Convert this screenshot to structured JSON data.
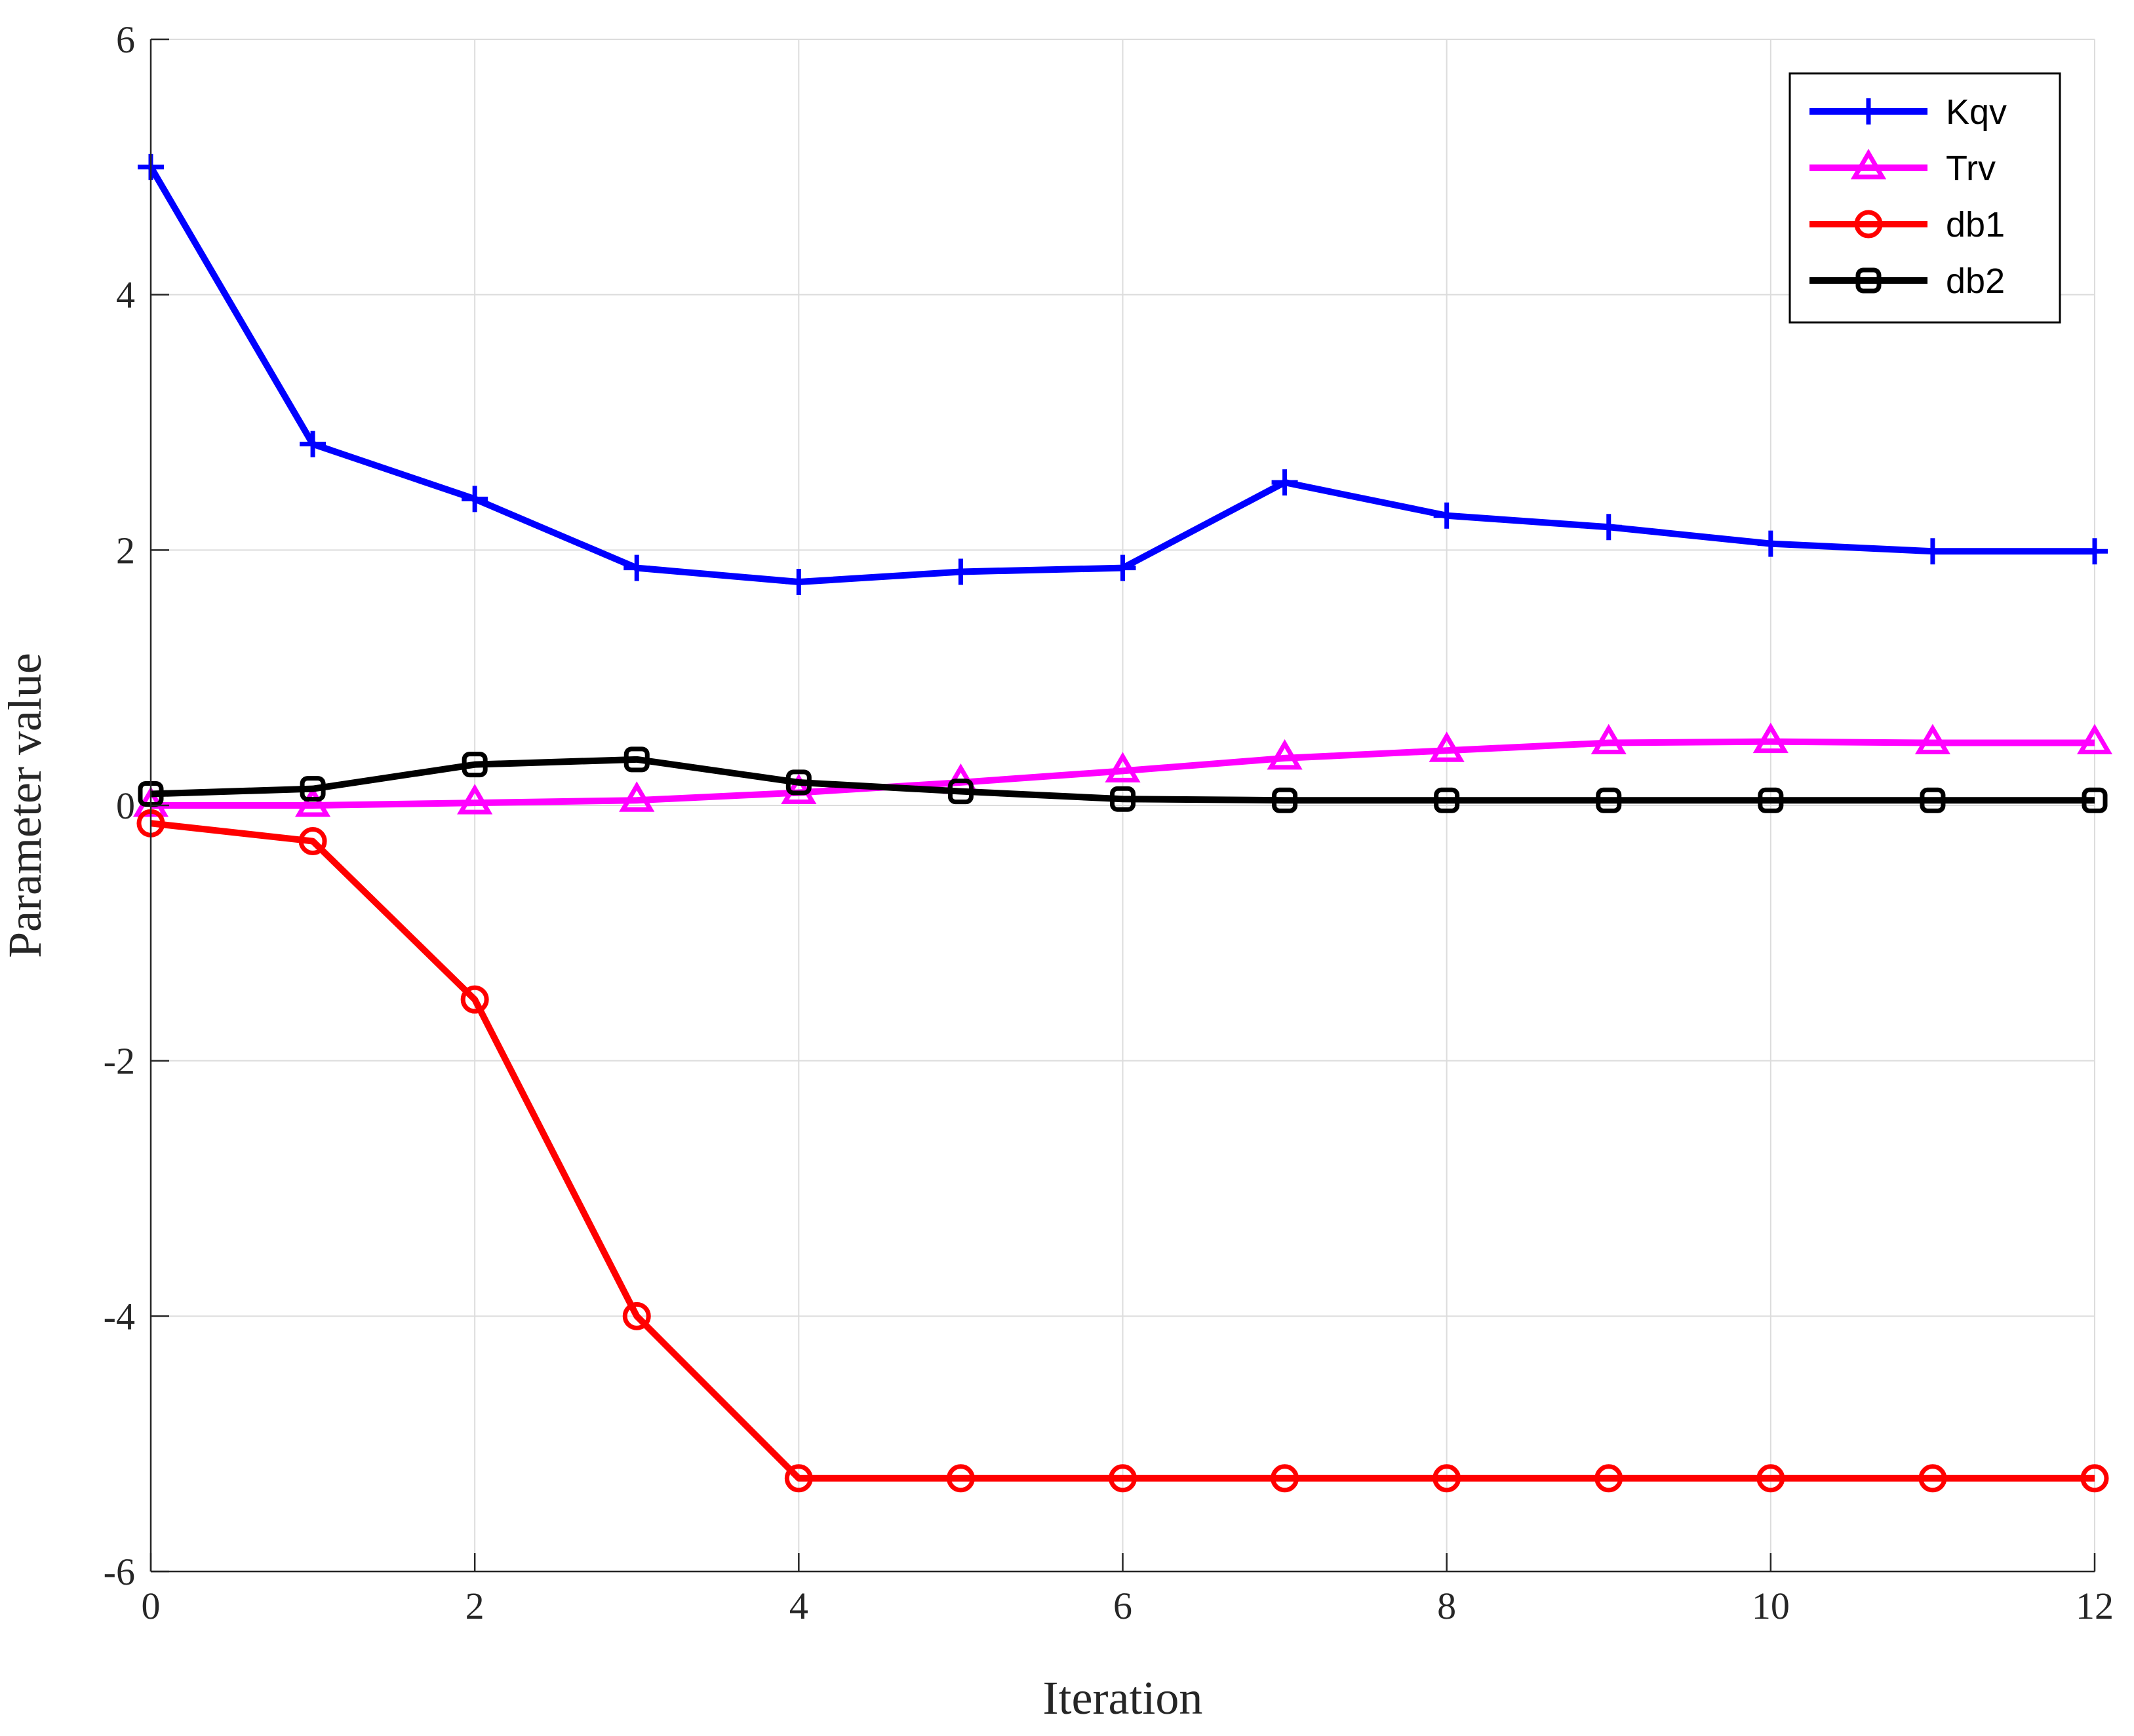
{
  "chart_data": {
    "type": "line",
    "title": "",
    "xlabel": "Iteration",
    "ylabel": "Parameter value",
    "xlim": [
      0,
      12
    ],
    "ylim": [
      -6,
      6
    ],
    "xticks": [
      0,
      2,
      4,
      6,
      8,
      10,
      12
    ],
    "yticks": [
      -6,
      -4,
      -2,
      0,
      2,
      4,
      6
    ],
    "grid": true,
    "legend_position": "top-right",
    "x": [
      0,
      1,
      2,
      3,
      4,
      5,
      6,
      7,
      8,
      9,
      10,
      11,
      12
    ],
    "series": [
      {
        "name": "Kqv",
        "color": "#0000ff",
        "marker": "plus",
        "values": [
          5.0,
          2.83,
          2.4,
          1.86,
          1.75,
          1.83,
          1.86,
          2.53,
          2.27,
          2.18,
          2.05,
          1.99,
          1.99
        ]
      },
      {
        "name": "Trv",
        "color": "#ff00ff",
        "marker": "triangle",
        "values": [
          0.0,
          0.0,
          0.02,
          0.04,
          0.1,
          0.18,
          0.27,
          0.37,
          0.43,
          0.49,
          0.5,
          0.49,
          0.49
        ]
      },
      {
        "name": "db1",
        "color": "#ff0000",
        "marker": "circle",
        "values": [
          -0.14,
          -0.28,
          -1.52,
          -4.0,
          -5.27,
          -5.27,
          -5.27,
          -5.27,
          -5.27,
          -5.27,
          -5.27,
          -5.27,
          -5.27
        ]
      },
      {
        "name": "db2",
        "color": "#000000",
        "marker": "square",
        "values": [
          0.09,
          0.13,
          0.32,
          0.36,
          0.18,
          0.11,
          0.05,
          0.04,
          0.04,
          0.04,
          0.04,
          0.04,
          0.04
        ]
      }
    ]
  }
}
